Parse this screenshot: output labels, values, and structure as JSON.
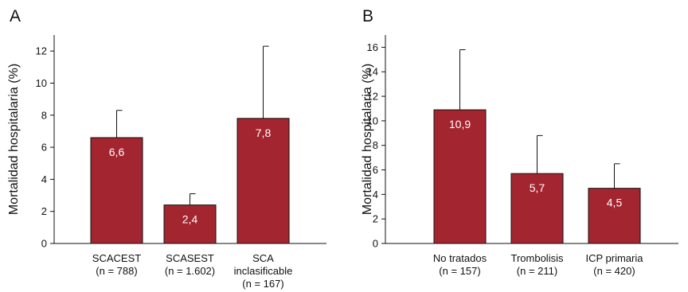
{
  "bar_color": "#a3252f",
  "chart_data": [
    {
      "type": "bar",
      "panel": "A",
      "ylabel": "Mortalidad hospitalaria (%)",
      "ylim": [
        0,
        13
      ],
      "yticks": [
        0,
        2,
        4,
        6,
        8,
        10,
        12
      ],
      "categories": [
        [
          "SCACEST",
          "(n = 788)"
        ],
        [
          "SCASEST",
          "(n = 1.602)"
        ],
        [
          "SCA",
          "inclasificable",
          "(n = 167)"
        ]
      ],
      "values": [
        6.6,
        2.4,
        7.8
      ],
      "value_labels": [
        "6,6",
        "2,4",
        "7,8"
      ],
      "error_upper": [
        8.3,
        3.1,
        12.3
      ],
      "grid": false,
      "legend": "none"
    },
    {
      "type": "bar",
      "panel": "B",
      "ylabel": "Mortalidad hospitalaria (%)",
      "ylim": [
        0,
        17
      ],
      "yticks": [
        0,
        2,
        4,
        6,
        8,
        10,
        12,
        14,
        16
      ],
      "categories": [
        [
          "No tratados",
          "(n = 157)"
        ],
        [
          "Trombolisis",
          "(n = 211)"
        ],
        [
          "ICP primaria",
          "(n = 420)"
        ]
      ],
      "values": [
        10.9,
        5.7,
        4.5
      ],
      "value_labels": [
        "10,9",
        "5,7",
        "4,5"
      ],
      "error_upper": [
        15.8,
        8.8,
        6.5
      ],
      "grid": false,
      "legend": "none"
    }
  ]
}
